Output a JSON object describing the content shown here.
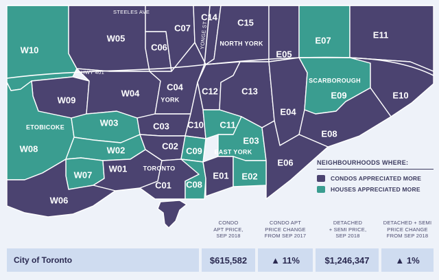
{
  "map": {
    "road_labels": {
      "steeles": "STEELES AVE",
      "yonge": "YONGE ST",
      "hwy401": "HWY 401"
    },
    "region_labels": {
      "north_york": "NORTH YORK",
      "scarborough": "SCARBOROUGH",
      "york": "YORK",
      "etobicoke": "ETOBICOKE",
      "east_york": "EAST YORK",
      "toronto": "TORONTO"
    },
    "colors": {
      "condos": "#4b4370",
      "houses": "#3a9d90",
      "border": "#ffffff",
      "background": "#eef2f9",
      "lake": "#e8eef8"
    },
    "zones": [
      {
        "code": "W10",
        "category": "houses"
      },
      {
        "code": "W05",
        "category": "condos"
      },
      {
        "code": "C07",
        "category": "condos"
      },
      {
        "code": "C06",
        "category": "condos"
      },
      {
        "code": "C14",
        "category": "condos"
      },
      {
        "code": "C15",
        "category": "condos"
      },
      {
        "code": "E05",
        "category": "condos"
      },
      {
        "code": "E07",
        "category": "houses"
      },
      {
        "code": "E11",
        "category": "condos"
      },
      {
        "code": "W09",
        "category": "condos"
      },
      {
        "code": "W04",
        "category": "condos"
      },
      {
        "code": "C04",
        "category": "condos"
      },
      {
        "code": "C12",
        "category": "condos"
      },
      {
        "code": "C13",
        "category": "condos"
      },
      {
        "code": "E09",
        "category": "houses"
      },
      {
        "code": "E10",
        "category": "condos"
      },
      {
        "code": "E04",
        "category": "condos"
      },
      {
        "code": "W08",
        "category": "houses"
      },
      {
        "code": "W03",
        "category": "houses"
      },
      {
        "code": "C03",
        "category": "condos"
      },
      {
        "code": "C10",
        "category": "condos"
      },
      {
        "code": "C11",
        "category": "houses"
      },
      {
        "code": "E08",
        "category": "condos"
      },
      {
        "code": "W02",
        "category": "houses"
      },
      {
        "code": "C02",
        "category": "condos"
      },
      {
        "code": "C09",
        "category": "houses"
      },
      {
        "code": "E03",
        "category": "houses"
      },
      {
        "code": "E06",
        "category": "condos"
      },
      {
        "code": "W07",
        "category": "houses"
      },
      {
        "code": "W01",
        "category": "condos"
      },
      {
        "code": "C01",
        "category": "condos"
      },
      {
        "code": "C08",
        "category": "houses"
      },
      {
        "code": "E01",
        "category": "condos"
      },
      {
        "code": "E02",
        "category": "houses"
      },
      {
        "code": "W06",
        "category": "condos"
      }
    ]
  },
  "legend": {
    "title": "NEIGHBOURHOODS WHERE:",
    "items": [
      {
        "label": "CONDOS APPRECIATED MORE",
        "color": "#4b4370"
      },
      {
        "label": "HOUSES APPRECIATED MORE",
        "color": "#3a9d90"
      }
    ]
  },
  "table": {
    "headers": [
      {
        "line1": "CONDO",
        "line2": "APT PRICE,",
        "line3": "SEP 2018"
      },
      {
        "line1": "CONDO APT",
        "line2": "PRICE CHANGE",
        "line3": "FROM SEP 2017"
      },
      {
        "line1": "DETACHED",
        "line2": "+ SEMI PRICE,",
        "line3": "SEP 2018"
      },
      {
        "line1": "DETACHED + SEMI",
        "line2": "PRICE CHANGE",
        "line3": "FROM SEP 2018"
      }
    ],
    "row": {
      "name": "City of Toronto",
      "condo_price": "$615,582",
      "condo_change": "▲ 11%",
      "house_price": "$1,246,347",
      "house_change": "▲ 1%"
    }
  }
}
